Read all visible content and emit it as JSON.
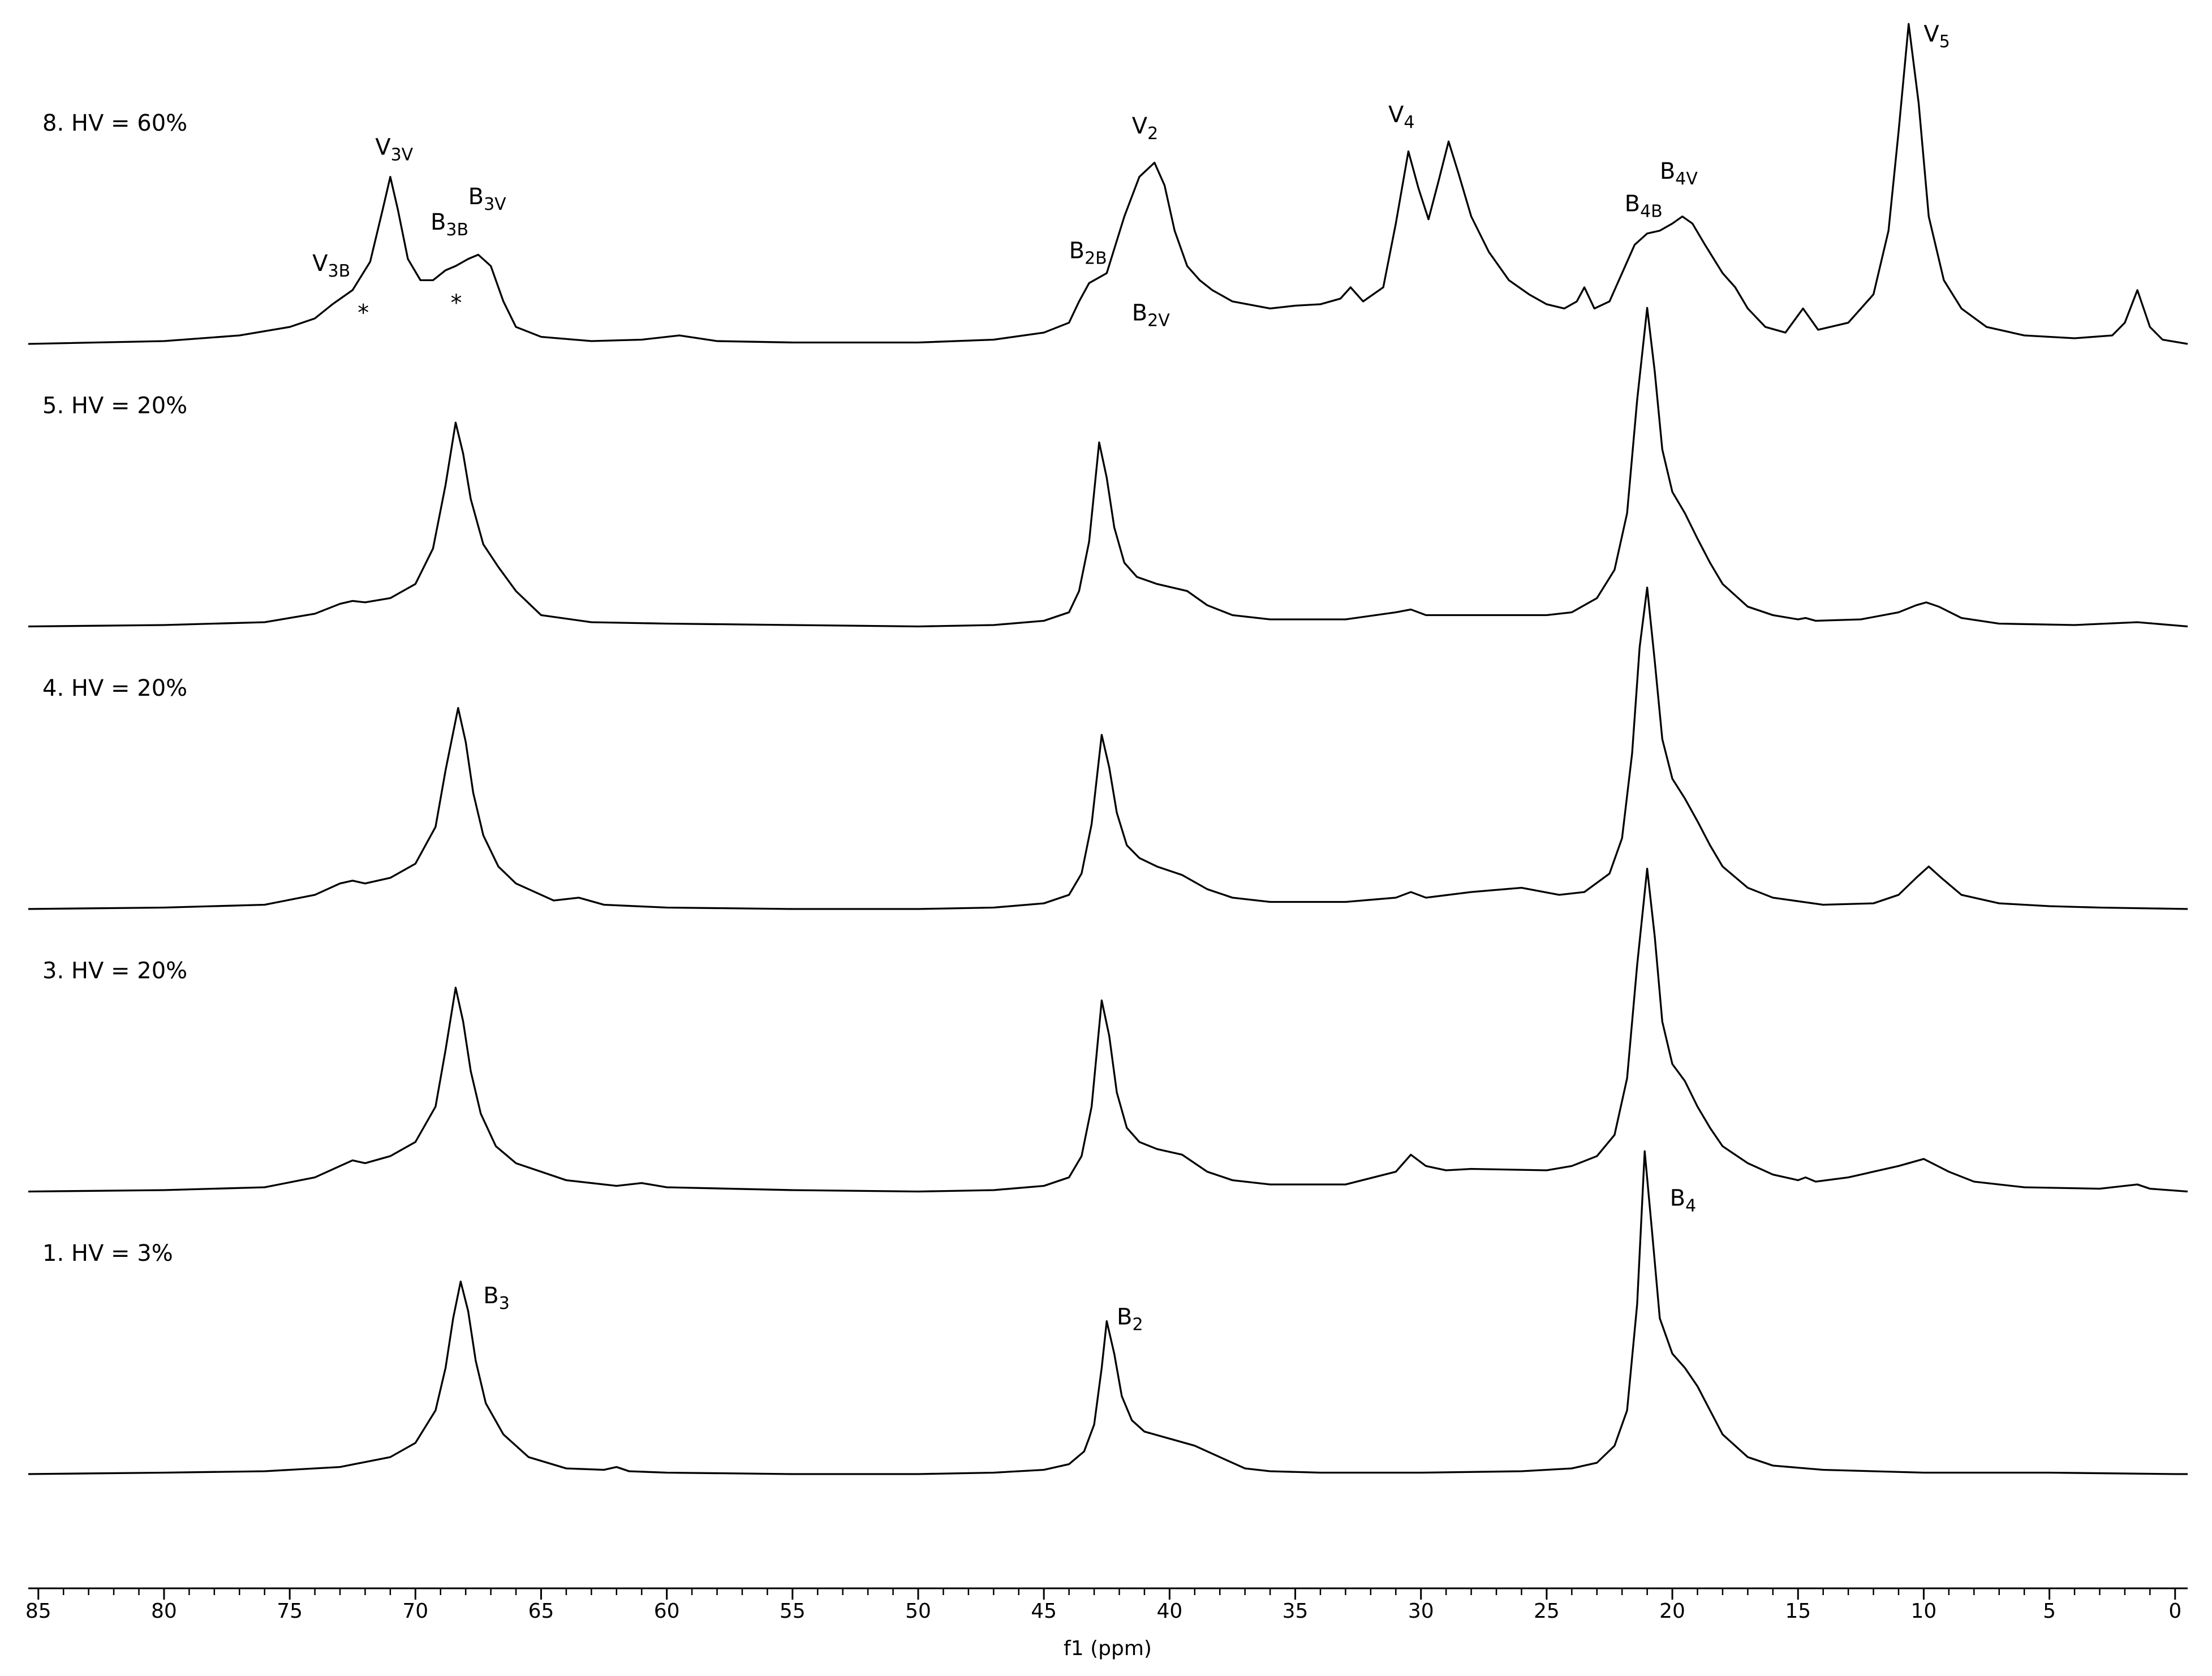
{
  "chart_data": {
    "type": "line",
    "x_label": "f1 (ppm)",
    "xlim": [
      85.4,
      -0.5
    ],
    "xticks": [
      85,
      80,
      75,
      70,
      65,
      60,
      55,
      50,
      45,
      40,
      35,
      30,
      25,
      20,
      15,
      10,
      5,
      0
    ],
    "xminorticks": [
      85,
      84,
      83,
      82,
      81,
      80,
      79,
      78,
      77,
      76,
      75,
      74,
      73,
      72,
      71,
      70,
      69,
      68,
      67,
      66,
      65,
      64,
      63,
      62,
      61,
      60,
      59,
      58,
      57,
      56,
      55,
      54,
      53,
      52,
      51,
      50,
      49,
      48,
      47,
      46,
      45,
      44,
      43,
      42,
      41,
      40,
      39,
      38,
      37,
      36,
      35,
      34,
      33,
      32,
      31,
      30,
      29,
      28,
      27,
      26,
      25,
      24,
      23,
      22,
      21,
      20,
      19,
      18,
      17,
      16,
      15,
      14,
      13,
      12,
      11,
      10,
      9,
      8,
      7,
      6,
      5,
      4,
      3,
      2,
      1,
      0
    ],
    "series": [
      {
        "name": "8. HV = 60%",
        "color": "#000000",
        "x": [
          85.4,
          80,
          77,
          75,
          74,
          73.3,
          72.5,
          71.8,
          71.3,
          71,
          70.7,
          70.3,
          69.8,
          69.3,
          68.8,
          68.4,
          67.9,
          67.5,
          67,
          66.5,
          66,
          65,
          63,
          61,
          59.5,
          58,
          55,
          50,
          47,
          45,
          44,
          43.6,
          43.2,
          42.5,
          41.8,
          41.2,
          40.6,
          40.2,
          39.8,
          39.3,
          38.8,
          38.3,
          37.5,
          36,
          35,
          34,
          33.2,
          32.8,
          32.3,
          31.5,
          31,
          30.5,
          30.1,
          29.7,
          29.3,
          28.9,
          28.5,
          28,
          27.3,
          26.5,
          25.7,
          25,
          24.3,
          23.8,
          23.5,
          23.1,
          22.5,
          22,
          21.5,
          21,
          20.5,
          20,
          19.6,
          19.2,
          18.7,
          18,
          17.5,
          17,
          16.3,
          15.5,
          14.8,
          14.2,
          13,
          12,
          11.4,
          11,
          10.6,
          10.2,
          9.8,
          9.2,
          8.5,
          7.5,
          6,
          4,
          2.5,
          2,
          1.5,
          1,
          0.5,
          -0.5
        ],
        "values": [
          0,
          2,
          6,
          12,
          18,
          28,
          38,
          58,
          95,
          118,
          95,
          60,
          45,
          45,
          52,
          55,
          60,
          63,
          55,
          30,
          12,
          5,
          2,
          3,
          6,
          2,
          1,
          1,
          3,
          8,
          15,
          30,
          43,
          50,
          90,
          118,
          128,
          112,
          80,
          55,
          45,
          38,
          30,
          25,
          27,
          28,
          32,
          40,
          30,
          40,
          85,
          136,
          110,
          88,
          115,
          143,
          120,
          90,
          65,
          45,
          35,
          28,
          25,
          30,
          40,
          25,
          30,
          50,
          70,
          78,
          80,
          85,
          90,
          85,
          70,
          50,
          40,
          25,
          12,
          8,
          25,
          10,
          15,
          35,
          80,
          150,
          226,
          170,
          90,
          45,
          25,
          12,
          6,
          4,
          6,
          15,
          38,
          12,
          3,
          0
        ],
        "annotations": [
          {
            "text": "V",
            "sub": "3V",
            "x": 71.6,
            "y": 138
          },
          {
            "text": "B",
            "sub": "3B",
            "x": 69.4,
            "y": 85
          },
          {
            "text": "B",
            "sub": "3V",
            "x": 67.9,
            "y": 103
          },
          {
            "text": "V",
            "sub": "3B",
            "x": 74.1,
            "y": 56
          },
          {
            "text": "*",
            "x": 72.3,
            "y": 21
          },
          {
            "text": "*",
            "x": 68.6,
            "y": 28
          },
          {
            "text": "B",
            "sub": "2B",
            "x": 44.0,
            "y": 65
          },
          {
            "text": "V",
            "sub": "2",
            "x": 41.5,
            "y": 153
          },
          {
            "text": "B",
            "sub": "2V",
            "x": 41.5,
            "y": 21
          },
          {
            "text": "V",
            "sub": "4",
            "x": 31.3,
            "y": 161
          },
          {
            "text": "B",
            "sub": "4B",
            "x": 21.9,
            "y": 98
          },
          {
            "text": "B",
            "sub": "4V",
            "x": 20.5,
            "y": 121
          },
          {
            "text": "V",
            "sub": "5",
            "x": 10.0,
            "y": 218
          }
        ]
      },
      {
        "name": "5. HV = 20%",
        "color": "#000000",
        "x": [
          85.4,
          80,
          76,
          74,
          73,
          72.5,
          72,
          71,
          70,
          69.3,
          68.8,
          68.4,
          68.1,
          67.8,
          67.3,
          66.7,
          66,
          65,
          63,
          60,
          55,
          50,
          47,
          45,
          44,
          43.6,
          43.2,
          42.8,
          42.5,
          42.2,
          41.8,
          41.3,
          40.5,
          39.3,
          38.5,
          37.5,
          36,
          33,
          31,
          30.4,
          29.8,
          28,
          25,
          24,
          23,
          22.3,
          21.8,
          21.4,
          21,
          20.7,
          20.4,
          20,
          19.5,
          19,
          18.5,
          18,
          17,
          16,
          15,
          14.7,
          14.3,
          12.5,
          11,
          10.3,
          9.9,
          9.4,
          8.5,
          7,
          4,
          1.5,
          -0.5
        ],
        "values": [
          0,
          1,
          3,
          9,
          16,
          18,
          17,
          20,
          30,
          55,
          100,
          144,
          122,
          90,
          58,
          42,
          25,
          8,
          3,
          2,
          1,
          0,
          1,
          4,
          10,
          25,
          60,
          130,
          105,
          70,
          45,
          35,
          30,
          25,
          15,
          8,
          5,
          5,
          10,
          12,
          8,
          8,
          8,
          10,
          20,
          40,
          80,
          160,
          225,
          180,
          125,
          95,
          80,
          62,
          45,
          30,
          14,
          8,
          5,
          6,
          4,
          5,
          10,
          15,
          17,
          14,
          6,
          2,
          1,
          3,
          0
        ]
      },
      {
        "name": "4. HV = 20%",
        "color": "#000000",
        "x": [
          85.4,
          80,
          76,
          74,
          73,
          72.5,
          72,
          71,
          70,
          69.2,
          68.8,
          68.3,
          68,
          67.7,
          67.3,
          66.7,
          66,
          64.5,
          63.5,
          62.5,
          60,
          55,
          50,
          47,
          45,
          44,
          43.5,
          43.1,
          42.7,
          42.4,
          42.1,
          41.7,
          41.2,
          40.5,
          39.5,
          38.5,
          37.5,
          36,
          33,
          31,
          30.4,
          29.8,
          28,
          26,
          24.5,
          23.5,
          22.5,
          22,
          21.6,
          21.3,
          21,
          20.7,
          20.4,
          20,
          19.5,
          19,
          18.5,
          18,
          17,
          16,
          14,
          12,
          11,
          10.3,
          9.8,
          9.3,
          8.5,
          7,
          5,
          3,
          -0.5
        ],
        "values": [
          0,
          1,
          3,
          10,
          18,
          20,
          18,
          22,
          32,
          58,
          98,
          142,
          118,
          82,
          52,
          30,
          18,
          6,
          8,
          3,
          1,
          0,
          0,
          1,
          4,
          10,
          25,
          60,
          123,
          100,
          68,
          45,
          36,
          30,
          24,
          14,
          8,
          5,
          5,
          8,
          12,
          8,
          12,
          15,
          10,
          12,
          25,
          50,
          110,
          185,
          227,
          175,
          120,
          92,
          78,
          62,
          45,
          30,
          15,
          8,
          3,
          4,
          10,
          22,
          30,
          22,
          10,
          4,
          2,
          1,
          0
        ]
      },
      {
        "name": "3. HV = 20%",
        "color": "#000000",
        "x": [
          85.4,
          80,
          76,
          74,
          73,
          72.5,
          72,
          71,
          70,
          69.2,
          68.8,
          68.4,
          68.1,
          67.8,
          67.4,
          66.8,
          66,
          64,
          62,
          61,
          60,
          55,
          50,
          47,
          45,
          44,
          43.5,
          43.1,
          42.7,
          42.4,
          42.1,
          41.7,
          41.2,
          40.5,
          39.5,
          38.5,
          37.5,
          36,
          33,
          31,
          30.4,
          29.8,
          29,
          28,
          25,
          24,
          23,
          22.3,
          21.8,
          21.4,
          21,
          20.7,
          20.4,
          20,
          19.5,
          19,
          18.5,
          18,
          17,
          16,
          15,
          14.7,
          14.3,
          13,
          11,
          10,
          9,
          8,
          6,
          3,
          1.5,
          1,
          -0.5
        ],
        "values": [
          0,
          1,
          3,
          10,
          18,
          22,
          20,
          25,
          35,
          60,
          100,
          144,
          120,
          85,
          55,
          32,
          20,
          8,
          4,
          6,
          3,
          1,
          0,
          1,
          4,
          10,
          25,
          60,
          135,
          110,
          70,
          45,
          35,
          30,
          26,
          14,
          8,
          5,
          5,
          14,
          26,
          18,
          15,
          16,
          15,
          18,
          25,
          40,
          80,
          160,
          228,
          180,
          120,
          90,
          78,
          60,
          45,
          32,
          20,
          12,
          8,
          10,
          7,
          10,
          18,
          23,
          14,
          7,
          3,
          2,
          5,
          2,
          0
        ]
      },
      {
        "name": "1. HV = 3%",
        "color": "#000000",
        "x": [
          85.4,
          80,
          76,
          73,
          71,
          70,
          69.2,
          68.8,
          68.5,
          68.2,
          67.9,
          67.6,
          67.2,
          66.5,
          65.5,
          64,
          62.5,
          62,
          61.5,
          60,
          55,
          50,
          47,
          45,
          44,
          43.4,
          43,
          42.7,
          42.5,
          42.2,
          41.9,
          41.5,
          41,
          40,
          39,
          38,
          37,
          36,
          34,
          30,
          26,
          24,
          23,
          22.3,
          21.8,
          21.4,
          21.1,
          20.8,
          20.5,
          20,
          19.5,
          19,
          18.5,
          18,
          17,
          16,
          14,
          10,
          5,
          0,
          -0.5
        ],
        "values": [
          0,
          1,
          2,
          5,
          12,
          22,
          45,
          75,
          110,
          136,
          115,
          80,
          50,
          28,
          12,
          4,
          3,
          5,
          2,
          1,
          0,
          0,
          1,
          3,
          7,
          16,
          35,
          75,
          108,
          85,
          55,
          38,
          30,
          25,
          20,
          12,
          4,
          2,
          1,
          1,
          2,
          4,
          8,
          20,
          45,
          120,
          228,
          170,
          110,
          85,
          75,
          62,
          45,
          28,
          12,
          6,
          3,
          1,
          1,
          0,
          0
        ],
        "annotations": [
          {
            "text": "B",
            "sub": "3",
            "x": 67.3,
            "y": 125
          },
          {
            "text": "B",
            "sub": "2",
            "x": 42.1,
            "y": 110
          },
          {
            "text": "B",
            "sub": "4",
            "x": 20.1,
            "y": 194
          }
        ]
      }
    ]
  }
}
